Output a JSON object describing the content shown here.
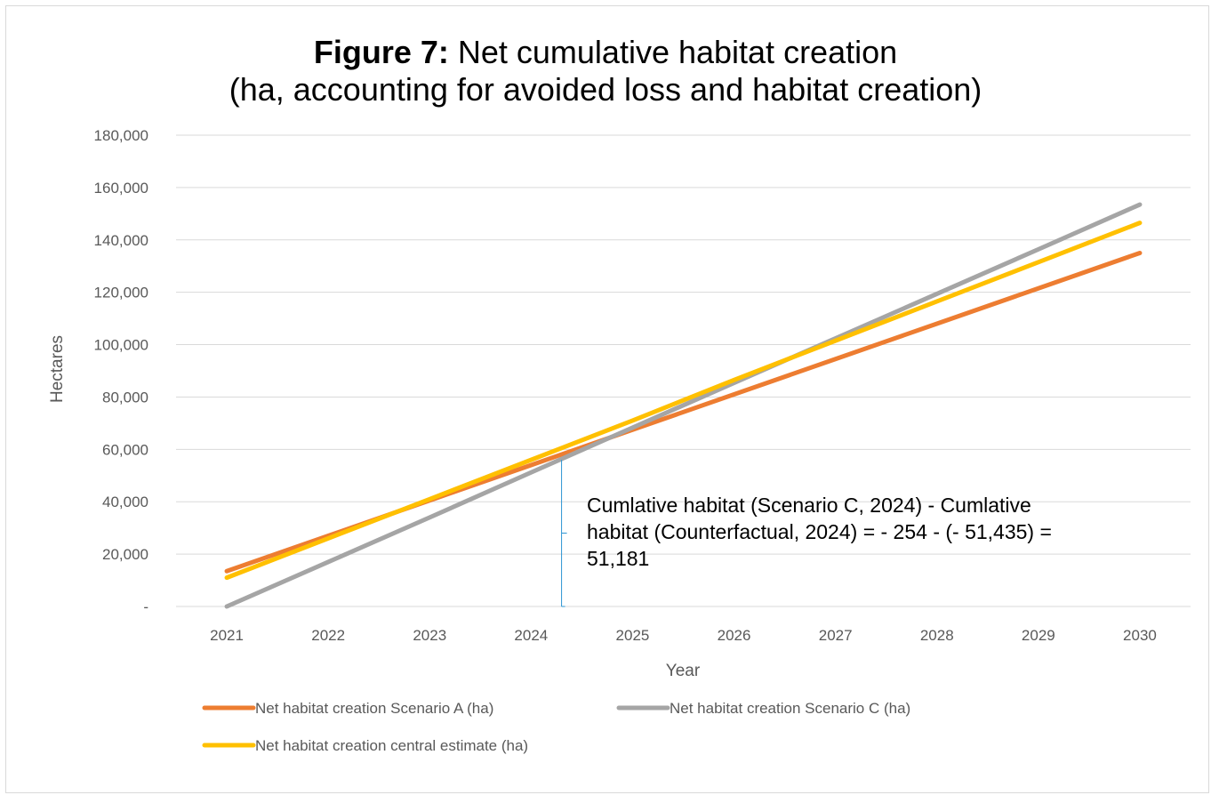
{
  "chart_data": {
    "type": "line",
    "title_bold": "Figure 7:",
    "title_rest": " Net cumulative habitat creation",
    "subtitle": "(ha, accounting for avoided loss and habitat creation)",
    "xlabel": "Year",
    "ylabel": "Hectares",
    "categories": [
      "2021",
      "2022",
      "2023",
      "2024",
      "2025",
      "2026",
      "2027",
      "2028",
      "2029",
      "2030"
    ],
    "ylim": [
      0,
      180000
    ],
    "yticks": [
      0,
      20000,
      40000,
      60000,
      80000,
      100000,
      120000,
      140000,
      160000,
      180000
    ],
    "ytick_labels": [
      "-",
      "20,000",
      "40,000",
      "60,000",
      "80,000",
      "100,000",
      "120,000",
      "140,000",
      "160,000",
      "180,000"
    ],
    "grid": true,
    "legend_position": "bottom",
    "series": [
      {
        "name": "Net habitat creation Scenario A (ha)",
        "color": "#ED7D31",
        "values": [
          13500,
          27000,
          40500,
          54000,
          67500,
          81000,
          94500,
          108000,
          121500,
          135000
        ]
      },
      {
        "name": "Net habitat creation Scenario C (ha)",
        "color": "#A5A5A5",
        "values": [
          0,
          17000,
          34000,
          51200,
          68300,
          85400,
          102400,
          119400,
          136400,
          153500
        ]
      },
      {
        "name": "Net habitat creation central estimate (ha)",
        "color": "#FFC000",
        "values": [
          11000,
          26000,
          41000,
          56000,
          71000,
          86500,
          101500,
          116500,
          131500,
          146500
        ]
      }
    ],
    "annotation": {
      "text_lines": [
        "Cumlative habitat (Scenario C, 2024) - Cumlative",
        "habitat (Counterfactual, 2024) = - 254 - (- 51,435) =",
        "51,181"
      ],
      "year": 2024.3,
      "from_value": 56000,
      "to_value": 0,
      "color": "#2E95D3"
    }
  }
}
